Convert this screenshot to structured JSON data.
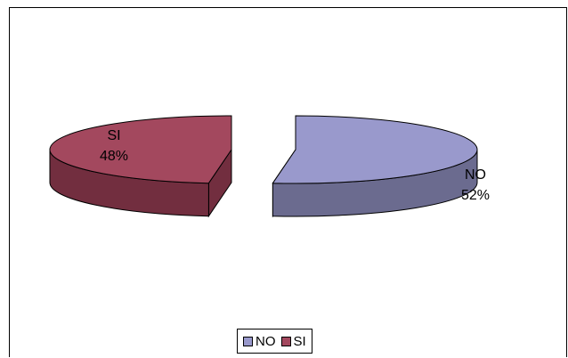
{
  "chart_data": {
    "type": "pie",
    "style": "3d-exploded",
    "categories": [
      "NO",
      "SI"
    ],
    "values": [
      52,
      48
    ],
    "value_unit": "%",
    "labels": [
      {
        "category": "NO",
        "percent": "52%"
      },
      {
        "category": "SI",
        "percent": "48%"
      }
    ],
    "legend": {
      "placement": "bottom",
      "entries": [
        "NO",
        "SI"
      ]
    },
    "title": ""
  },
  "colors": {
    "NO": "#9999CC",
    "NO_side": "#6B6B8F",
    "SI": "#A3485E",
    "SI_side": "#722E3F"
  }
}
